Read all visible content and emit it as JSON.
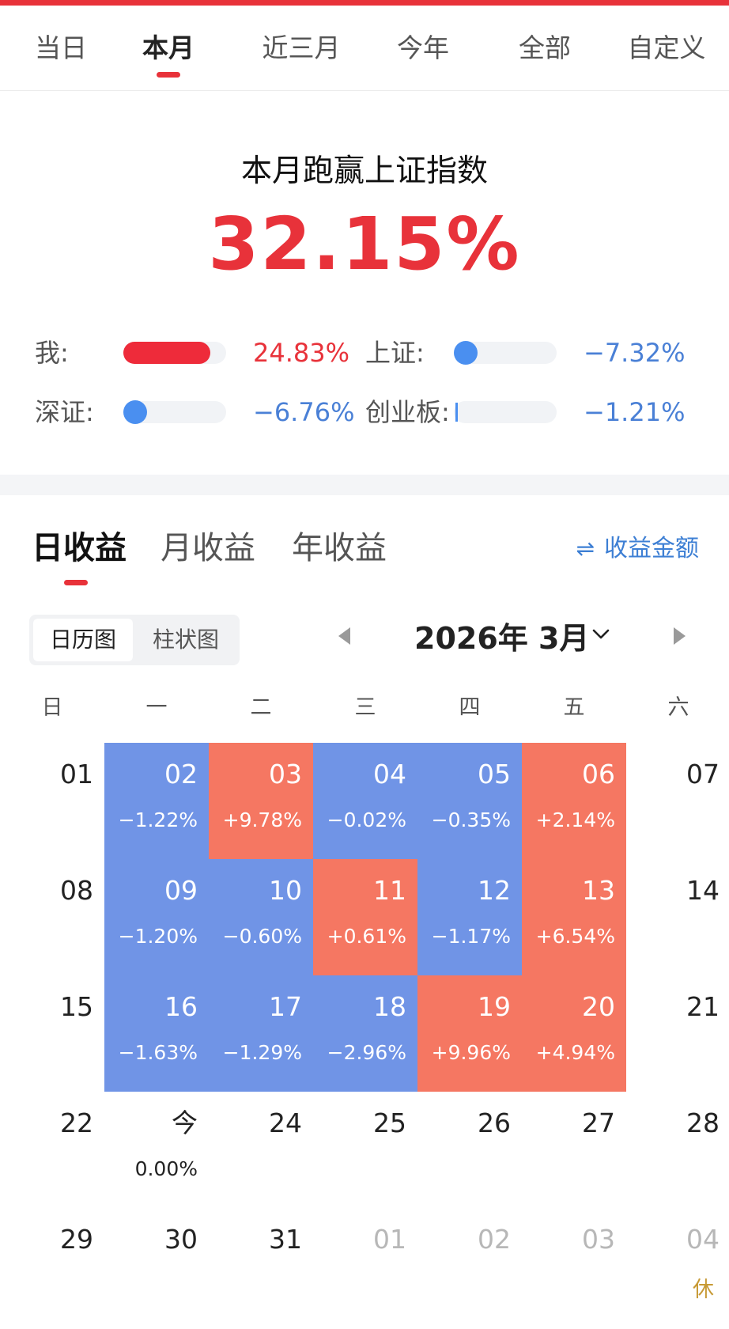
{
  "period_tabs": [
    {
      "label": "当日"
    },
    {
      "label": "本月"
    },
    {
      "label": "近三月"
    },
    {
      "label": "今年"
    },
    {
      "label": "全部"
    },
    {
      "label": "自定义"
    }
  ],
  "active_period": "本月",
  "summary": {
    "title": "本月跑赢上证指数",
    "value": "32.15%"
  },
  "comparisons": [
    {
      "label": "我:",
      "value": "24.83%",
      "trend": "up"
    },
    {
      "label": "上证:",
      "value": "−7.32%",
      "trend": "down"
    },
    {
      "label": "深证:",
      "value": "−6.76%",
      "trend": "down"
    },
    {
      "label": "创业板:",
      "value": "−1.21%",
      "trend": "down"
    }
  ],
  "income_tabs": [
    {
      "label": "日收益"
    },
    {
      "label": "月收益"
    },
    {
      "label": "年收益"
    }
  ],
  "active_income_tab": "日收益",
  "toggle_amount_label": "收益金额",
  "view_switch": [
    {
      "label": "日历图"
    },
    {
      "label": "柱状图"
    }
  ],
  "active_view": "日历图",
  "month_label": "2026年 3月",
  "weekdays": [
    "日",
    "一",
    "二",
    "三",
    "四",
    "五",
    "六"
  ],
  "calendar": [
    [
      {
        "day": "01"
      },
      {
        "day": "02",
        "pct": "−1.22%",
        "status": "down"
      },
      {
        "day": "03",
        "pct": "+9.78%",
        "status": "up"
      },
      {
        "day": "04",
        "pct": "−0.02%",
        "status": "down"
      },
      {
        "day": "05",
        "pct": "−0.35%",
        "status": "down"
      },
      {
        "day": "06",
        "pct": "+2.14%",
        "status": "up"
      },
      {
        "day": "07"
      }
    ],
    [
      {
        "day": "08"
      },
      {
        "day": "09",
        "pct": "−1.20%",
        "status": "down"
      },
      {
        "day": "10",
        "pct": "−0.60%",
        "status": "down"
      },
      {
        "day": "11",
        "pct": "+0.61%",
        "status": "up"
      },
      {
        "day": "12",
        "pct": "−1.17%",
        "status": "down"
      },
      {
        "day": "13",
        "pct": "+6.54%",
        "status": "up"
      },
      {
        "day": "14"
      }
    ],
    [
      {
        "day": "15"
      },
      {
        "day": "16",
        "pct": "−1.63%",
        "status": "down"
      },
      {
        "day": "17",
        "pct": "−1.29%",
        "status": "down"
      },
      {
        "day": "18",
        "pct": "−2.96%",
        "status": "down"
      },
      {
        "day": "19",
        "pct": "+9.96%",
        "status": "up"
      },
      {
        "day": "20",
        "pct": "+4.94%",
        "status": "up"
      },
      {
        "day": "21"
      }
    ],
    [
      {
        "day": "22"
      },
      {
        "day": "今",
        "pct": "0.00%"
      },
      {
        "day": "24"
      },
      {
        "day": "25"
      },
      {
        "day": "26"
      },
      {
        "day": "27"
      },
      {
        "day": "28"
      }
    ],
    [
      {
        "day": "29"
      },
      {
        "day": "30"
      },
      {
        "day": "31"
      },
      {
        "day": "01",
        "status": "other"
      },
      {
        "day": "02",
        "status": "other"
      },
      {
        "day": "03",
        "status": "other"
      },
      {
        "day": "04",
        "status": "other"
      }
    ]
  ],
  "holiday_label": "休",
  "colors": {
    "accent_red": "#e8323a",
    "up_cell": "#f57762",
    "down_cell": "#7094e6",
    "blue_text": "#4a80d6",
    "holiday": "#c79a35"
  },
  "icons": [
    "swap-arrows-icon",
    "prev-month-icon",
    "next-month-icon",
    "chevron-down-icon"
  ]
}
